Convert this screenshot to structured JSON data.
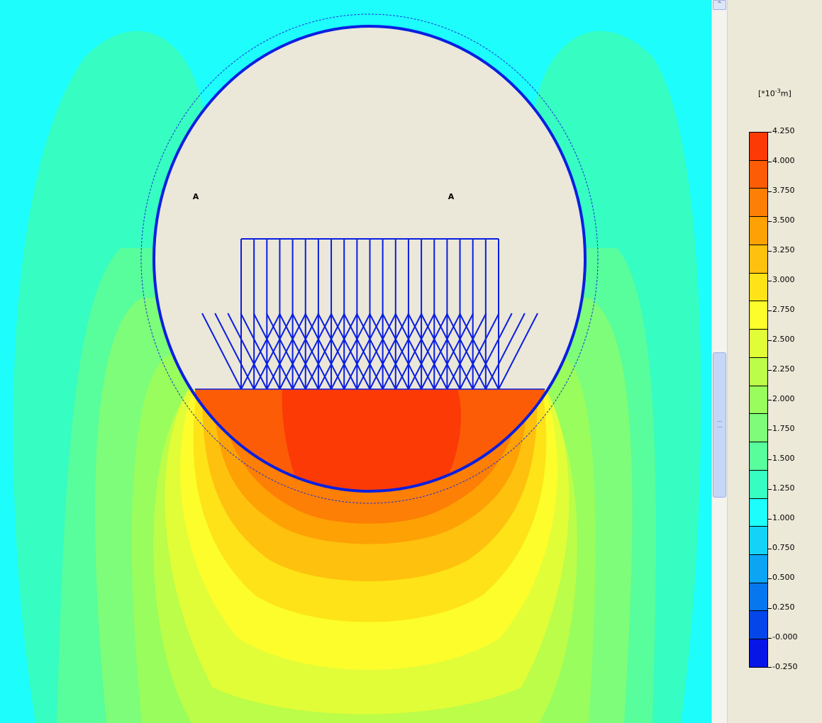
{
  "plot": {
    "point_labels": [
      "A",
      "A"
    ],
    "colors": {
      "background": "#1cfdfc",
      "structure": "#0a1fe0",
      "soil_inner": "#ebe7d9"
    }
  },
  "legend": {
    "unit_prefix": "[*10",
    "unit_exp": "-3",
    "unit_suffix": "m]",
    "ticks": [
      "4.250",
      "4.000",
      "3.750",
      "3.500",
      "3.250",
      "3.000",
      "2.750",
      "2.500",
      "2.250",
      "2.000",
      "1.750",
      "1.500",
      "1.250",
      "1.000",
      "0.750",
      "0.500",
      "0.250",
      "-0.000",
      "-0.250"
    ],
    "bands": [
      "#fb3a06",
      "#fc5c06",
      "#fd7f05",
      "#fda104",
      "#fec10e",
      "#fde317",
      "#fcfd2b",
      "#e1fd37",
      "#bbfd48",
      "#98fd5d",
      "#7dfd7a",
      "#58fd9c",
      "#36fdc1",
      "#1cfdfc",
      "#13d4f8",
      "#0ba5f3",
      "#0677ee",
      "#0546ea",
      "#0716e6"
    ]
  },
  "scrollbar": {
    "up_arrow": "up-arrow-icon"
  }
}
